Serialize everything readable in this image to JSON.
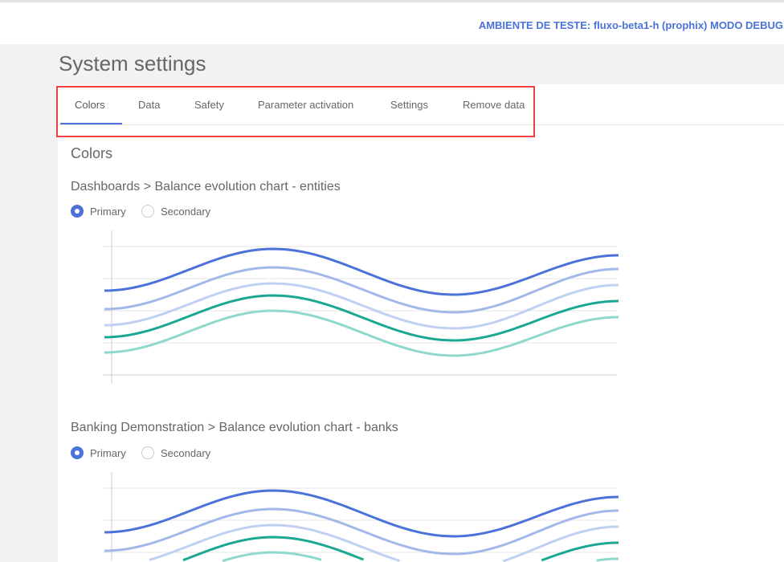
{
  "header": {
    "environment": "AMBIENTE DE TESTE: fluxo-beta1-h (prophix) MODO DEBUG"
  },
  "page_title": "System settings",
  "tabs": [
    {
      "label": "Colors",
      "active": true
    },
    {
      "label": "Data"
    },
    {
      "label": "Safety"
    },
    {
      "label": "Parameter activation"
    },
    {
      "label": "Settings"
    },
    {
      "label": "Remove data"
    }
  ],
  "section_title": "Colors",
  "sections": [
    {
      "title": "Dashboards > Balance evolution chart - entities",
      "options": [
        "Primary",
        "Secondary"
      ],
      "selected": "Primary"
    },
    {
      "title": "Banking Demonstration > Balance evolution chart - banks",
      "options": [
        "Primary",
        "Secondary"
      ],
      "selected": "Primary"
    }
  ],
  "series_colors": [
    "#4a72d9",
    "#a3b8ea",
    "#c0d0f2",
    "#1aa893",
    "#8fd8cc"
  ],
  "highlight_color": "#f04040"
}
